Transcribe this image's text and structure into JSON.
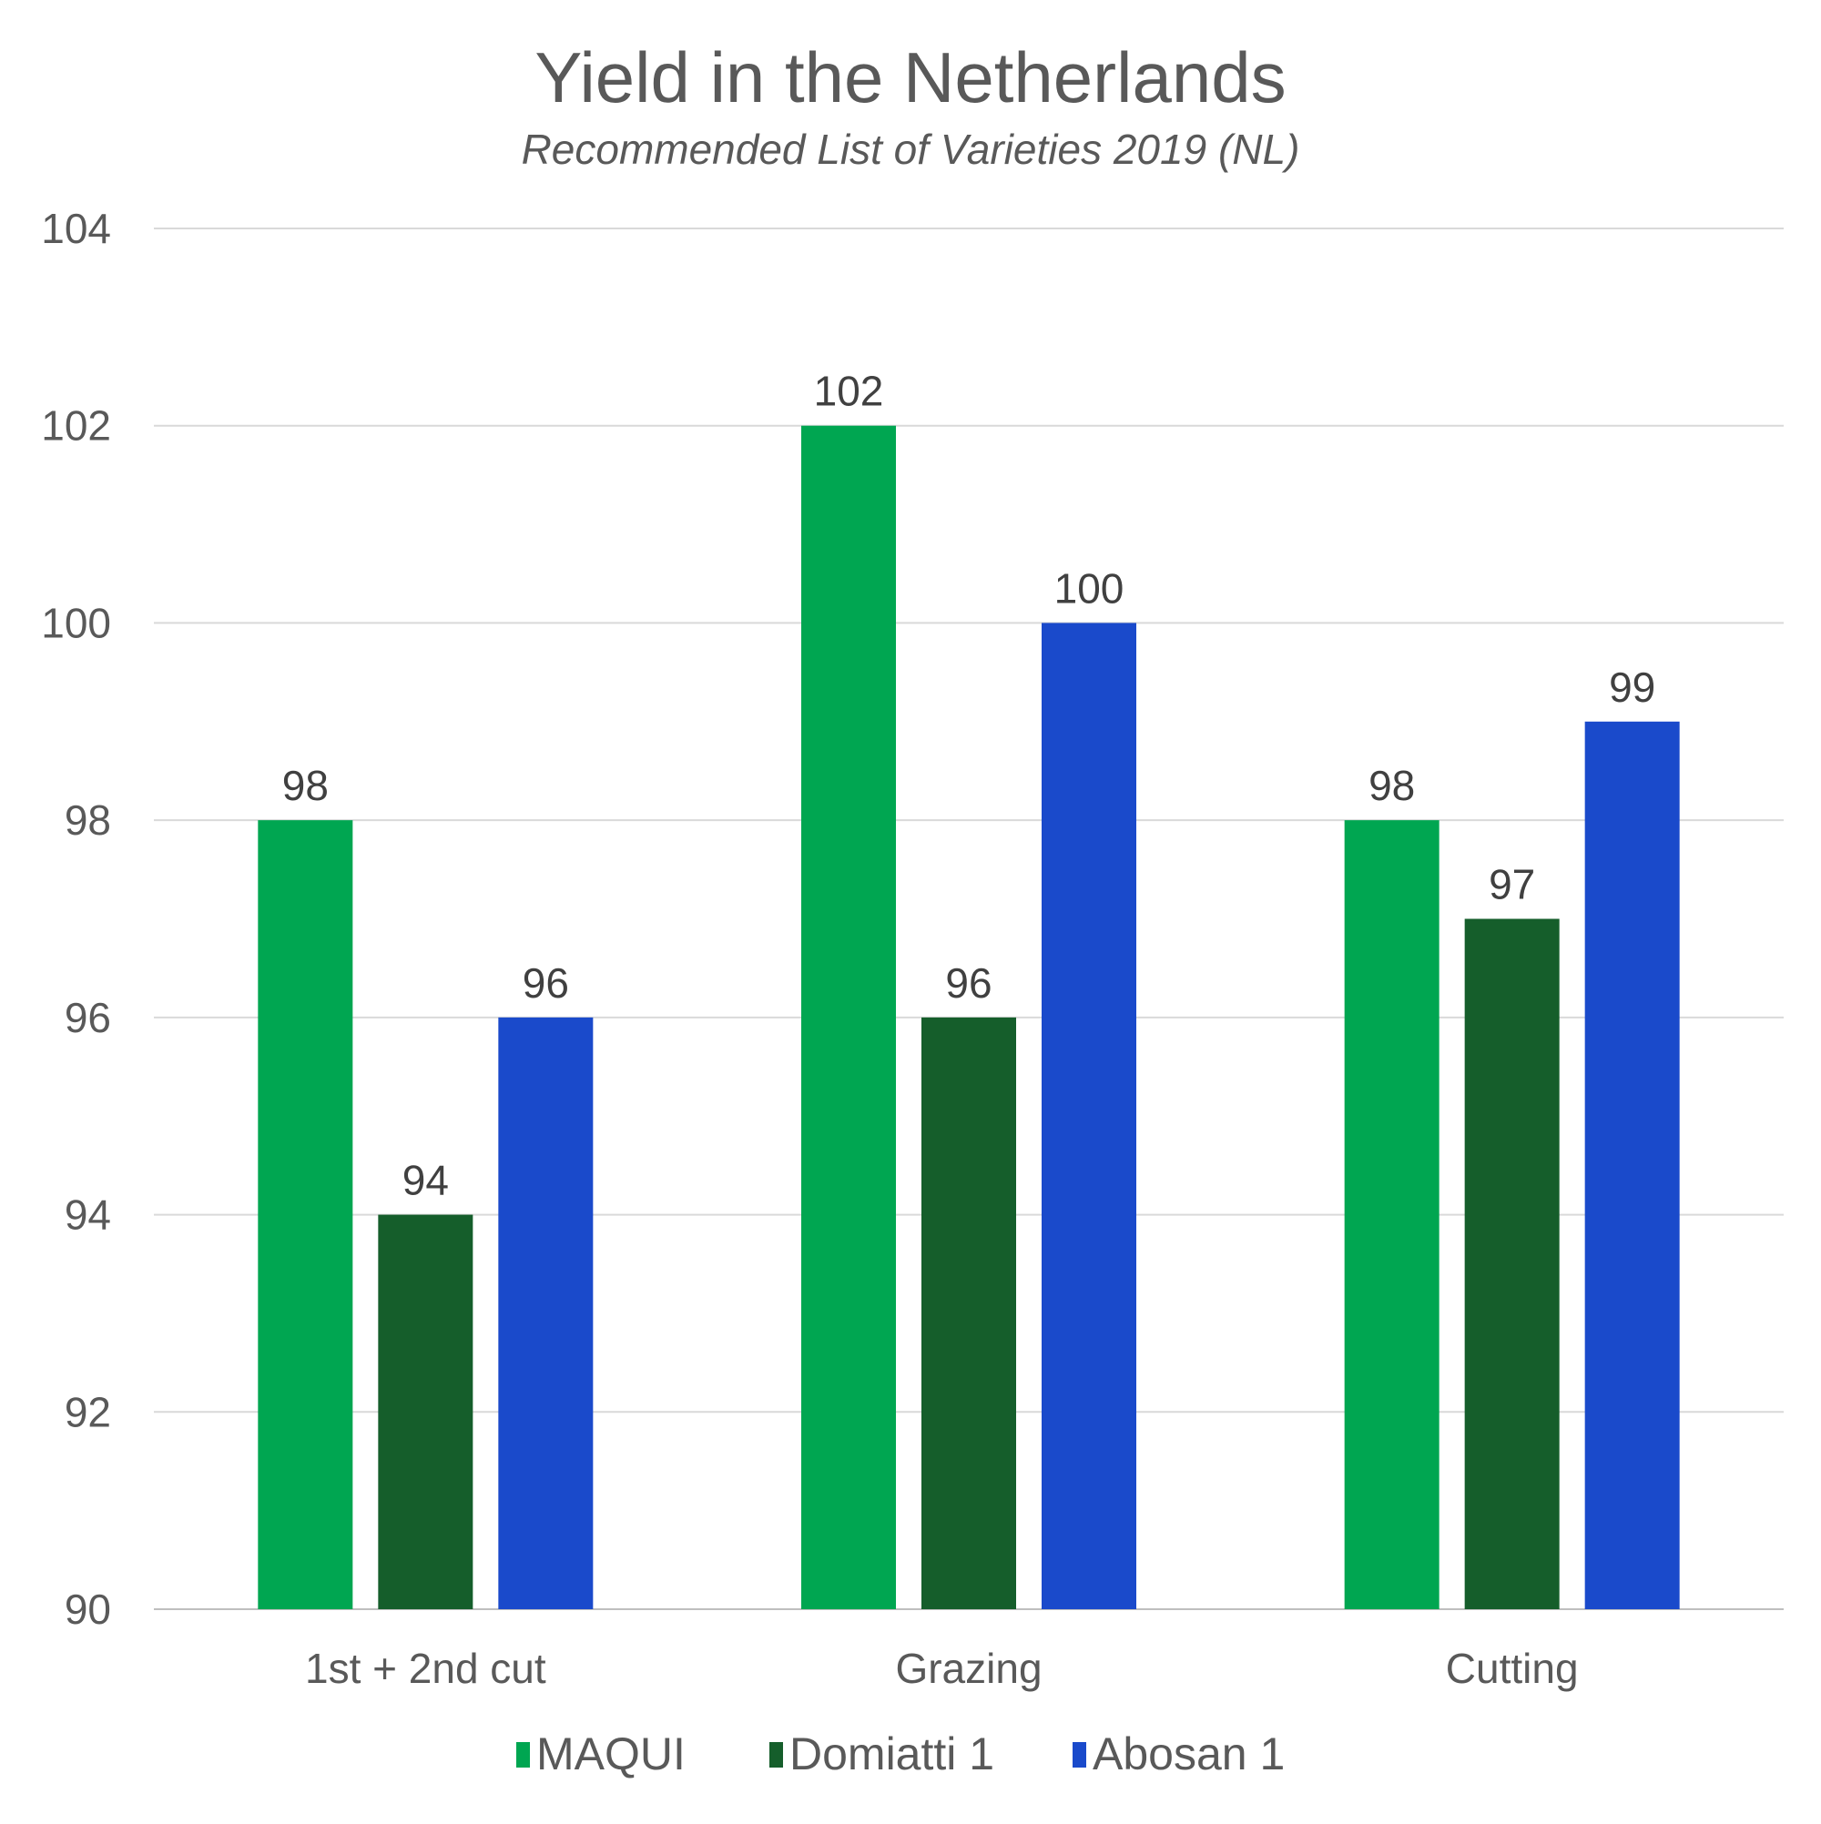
{
  "chart_data": {
    "type": "bar",
    "title": "Yield in the Netherlands",
    "subtitle": "Recommended List of Varieties 2019 (NL)",
    "categories": [
      "1st + 2nd cut",
      "Grazing",
      "Cutting"
    ],
    "series": [
      {
        "name": "MAQUI",
        "color": "#00A651",
        "values": [
          98,
          102,
          98
        ]
      },
      {
        "name": "Domiatti 1",
        "color": "#155E2B",
        "values": [
          94,
          96,
          97
        ]
      },
      {
        "name": "Abosan 1",
        "color": "#1A4ACB",
        "values": [
          96,
          100,
          99
        ]
      }
    ],
    "ylim": [
      90,
      104
    ],
    "yticks": [
      90,
      92,
      94,
      96,
      98,
      100,
      102,
      104
    ],
    "xlabel": "",
    "ylabel": "",
    "grid": true,
    "legend": "bottom-center",
    "data_labels": true
  }
}
